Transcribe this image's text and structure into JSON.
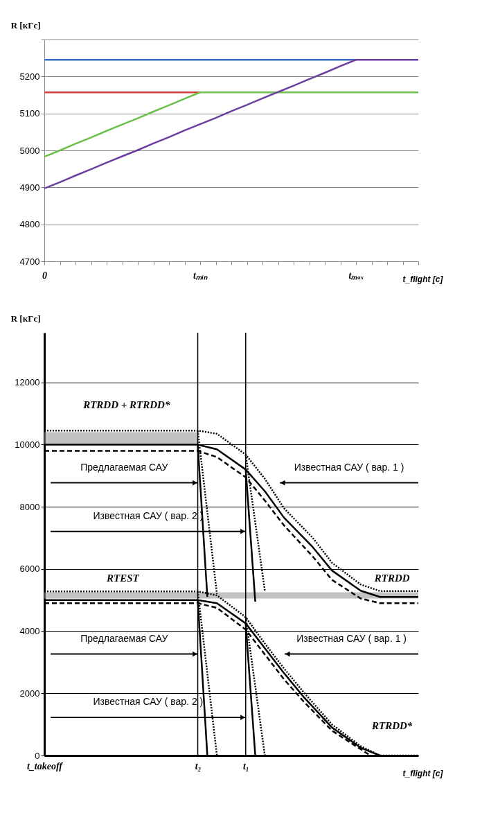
{
  "chart_data": [
    {
      "type": "line",
      "ylabel": "R [кГс]",
      "xlabel": "t_flight [с]",
      "ylim": [
        4700,
        5300
      ],
      "categories": [
        "0",
        null,
        null,
        null,
        null,
        null,
        null,
        null,
        null,
        null,
        "tₘᵢₙ",
        null,
        null,
        null,
        null,
        null,
        null,
        null,
        null,
        null,
        "tₘₐₓ",
        null,
        null,
        null,
        null
      ],
      "yticks": [
        4700,
        4800,
        4900,
        5000,
        5100,
        5200,
        {
          "value": 5300,
          "label": null
        }
      ],
      "grid": "y",
      "series": [
        {
          "color": "#3a6fc4",
          "values": [
            5245,
            5245,
            5245,
            5245,
            5245,
            5245,
            5245,
            5245,
            5245,
            5245,
            5245,
            5245,
            5245,
            5245,
            5245,
            5245,
            5245,
            5245,
            5245,
            5245,
            5245,
            null,
            null,
            null,
            null
          ]
        },
        {
          "color": "#d03a3a",
          "values": [
            5157,
            5157,
            5157,
            5157,
            5157,
            5157,
            5157,
            5157,
            5157,
            5157,
            5157,
            null,
            null,
            null,
            null,
            null,
            null,
            null,
            null,
            null,
            null,
            null,
            null,
            null,
            null
          ]
        },
        {
          "color": "#6cc04a",
          "values": [
            4983,
            5000,
            5018,
            5035,
            5053,
            5070,
            5087,
            5105,
            5122,
            5140,
            5157,
            5157,
            5157,
            5157,
            5157,
            5157,
            5157,
            5157,
            5157,
            5157,
            5157,
            5157,
            5157,
            5157,
            5157
          ]
        },
        {
          "color": "#6a3fa0",
          "values": [
            4897,
            4914,
            4932,
            4949,
            4967,
            4984,
            5001,
            5019,
            5036,
            5054,
            5071,
            5088,
            5106,
            5123,
            5141,
            5158,
            5175,
            5193,
            5210,
            5228,
            5245,
            5245,
            5245,
            5245,
            5245
          ]
        }
      ]
    },
    {
      "type": "line",
      "ylabel": "R [кГс]",
      "xlabel": "t_flight [с]",
      "ylim": [
        0,
        13600
      ],
      "categories": [
        "t_takeoff",
        null,
        null,
        null,
        null,
        null,
        null,
        null,
        null,
        null,
        null,
        null,
        null,
        null,
        null,
        null,
        "t₂",
        null,
        null,
        null,
        null,
        "t₁",
        null,
        null,
        null,
        null,
        null,
        null,
        null,
        null,
        null,
        null,
        null,
        null,
        null,
        null,
        null,
        null,
        null,
        null
      ],
      "yticks": [
        0,
        2000,
        4000,
        6000,
        8000,
        10000,
        12000
      ],
      "grid": "y",
      "ref_lines": [
        {
          "axis": "x",
          "value": "t₂"
        },
        {
          "axis": "x",
          "value": "t₁"
        }
      ],
      "bands": [
        {
          "axis": "y",
          "from": 10000,
          "to": 10400,
          "color": "#9a9a9a"
        },
        {
          "axis": "y",
          "from": 5050,
          "to": 5250,
          "color": "#9a9a9a"
        }
      ],
      "annotations": [
        "RTRDD + RTRDD*",
        "RTEST",
        "RTRDD",
        "RTRDD*",
        "Предлагаемая САУ",
        "Известная САУ ( вар. 1 )",
        "Известная САУ ( вар. 2 )",
        "Предлагаемая САУ",
        "Известная САУ ( вар. 1 )",
        "Известная САУ ( вар. 2 )"
      ],
      "series": [
        {
          "color": "#000000",
          "line_style": "dotted",
          "values": [
            10450,
            null,
            null,
            null,
            null,
            null,
            null,
            null,
            null,
            null,
            null,
            null,
            null,
            null,
            null,
            null,
            10450,
            null,
            10350,
            null,
            null,
            9680,
            null,
            8900,
            null,
            7950,
            null,
            null,
            7000,
            null,
            6200,
            null,
            null,
            5500,
            null,
            5290,
            null,
            null,
            null,
            5290
          ]
        },
        {
          "color": "#000000",
          "line_style": "solid",
          "values": [
            10000,
            null,
            null,
            null,
            null,
            null,
            null,
            null,
            null,
            null,
            null,
            null,
            null,
            null,
            null,
            null,
            10000,
            null,
            9850,
            null,
            null,
            9200,
            null,
            8500,
            null,
            7650,
            null,
            null,
            6700,
            null,
            5950,
            null,
            null,
            5300,
            null,
            5100,
            null,
            null,
            null,
            5100
          ]
        },
        {
          "color": "#000000",
          "line_style": "dashed",
          "values": [
            9800,
            null,
            null,
            null,
            null,
            null,
            null,
            null,
            null,
            null,
            null,
            null,
            null,
            null,
            null,
            null,
            9800,
            null,
            9600,
            null,
            null,
            8950,
            null,
            8200,
            null,
            7400,
            null,
            null,
            6400,
            null,
            5650,
            null,
            null,
            5050,
            null,
            4900,
            null,
            null,
            null,
            4900
          ]
        },
        {
          "color": "#000000",
          "line_style": "dotted",
          "values": [
            null,
            null,
            null,
            null,
            null,
            null,
            null,
            null,
            null,
            null,
            null,
            null,
            null,
            null,
            null,
            null,
            10450,
            null,
            5200,
            null,
            null,
            null,
            null,
            null,
            null,
            null,
            null,
            null,
            null,
            null,
            null,
            null,
            null,
            null,
            null,
            null,
            null,
            null,
            null,
            null
          ]
        },
        {
          "color": "#000000",
          "line_style": "solid",
          "values": [
            null,
            null,
            null,
            null,
            null,
            null,
            null,
            null,
            null,
            null,
            null,
            null,
            null,
            null,
            null,
            null,
            10000,
            5100,
            null,
            null,
            null,
            null,
            null,
            null,
            null,
            null,
            null,
            null,
            null,
            null,
            null,
            null,
            null,
            null,
            null,
            null,
            null,
            null,
            null,
            null
          ]
        },
        {
          "color": "#000000",
          "line_style": "dotted",
          "values": [
            null,
            null,
            null,
            null,
            null,
            null,
            null,
            null,
            null,
            null,
            null,
            null,
            null,
            null,
            null,
            null,
            null,
            null,
            null,
            null,
            null,
            9680,
            null,
            5300,
            null,
            null,
            null,
            null,
            null,
            null,
            null,
            null,
            null,
            null,
            null,
            null,
            null,
            null,
            null,
            null
          ]
        },
        {
          "color": "#000000",
          "line_style": "solid",
          "values": [
            null,
            null,
            null,
            null,
            null,
            null,
            null,
            null,
            null,
            null,
            null,
            null,
            null,
            null,
            null,
            null,
            null,
            null,
            null,
            null,
            null,
            9200,
            4950,
            null,
            null,
            null,
            null,
            null,
            null,
            null,
            null,
            null,
            null,
            null,
            null,
            null,
            null,
            null,
            null,
            null
          ]
        },
        {
          "color": "#000000",
          "line_style": "dotted",
          "values": [
            5280,
            null,
            null,
            null,
            null,
            null,
            null,
            null,
            null,
            null,
            null,
            null,
            null,
            null,
            null,
            null,
            5280,
            null,
            5150,
            null,
            null,
            4450,
            null,
            3600,
            null,
            2800,
            null,
            2050,
            null,
            null,
            1000,
            null,
            null,
            300,
            null,
            0,
            null,
            null,
            null,
            0
          ]
        },
        {
          "color": "#000000",
          "line_style": "solid",
          "values": [
            5000,
            null,
            null,
            null,
            null,
            null,
            null,
            null,
            null,
            null,
            null,
            null,
            null,
            null,
            null,
            null,
            5000,
            null,
            4900,
            null,
            null,
            4250,
            null,
            3450,
            null,
            2650,
            null,
            1900,
            null,
            null,
            900,
            null,
            null,
            250,
            null,
            0,
            null,
            null,
            null,
            null
          ]
        },
        {
          "color": "#000000",
          "line_style": "dashed",
          "values": [
            4900,
            null,
            null,
            null,
            null,
            null,
            null,
            null,
            null,
            null,
            null,
            null,
            null,
            null,
            null,
            null,
            4900,
            null,
            4750,
            null,
            null,
            4050,
            null,
            3250,
            null,
            2450,
            null,
            1750,
            null,
            null,
            800,
            null,
            null,
            200,
            0,
            null,
            null,
            null,
            null,
            null
          ]
        },
        {
          "color": "#000000",
          "line_style": "dotted",
          "values": [
            null,
            null,
            null,
            null,
            null,
            null,
            null,
            null,
            null,
            null,
            null,
            null,
            null,
            null,
            null,
            null,
            5280,
            null,
            0,
            null,
            null,
            null,
            null,
            null,
            null,
            null,
            null,
            null,
            null,
            null,
            null,
            null,
            null,
            null,
            null,
            null,
            null,
            null,
            null,
            null
          ]
        },
        {
          "color": "#000000",
          "line_style": "solid",
          "values": [
            null,
            null,
            null,
            null,
            null,
            null,
            null,
            null,
            null,
            null,
            null,
            null,
            null,
            null,
            null,
            null,
            5000,
            0,
            null,
            null,
            null,
            null,
            null,
            null,
            null,
            null,
            null,
            null,
            null,
            null,
            null,
            null,
            null,
            null,
            null,
            null,
            null,
            null,
            null,
            null
          ]
        },
        {
          "color": "#000000",
          "line_style": "dotted",
          "values": [
            null,
            null,
            null,
            null,
            null,
            null,
            null,
            null,
            null,
            null,
            null,
            null,
            null,
            null,
            null,
            null,
            null,
            null,
            null,
            null,
            null,
            4450,
            null,
            0,
            null,
            null,
            null,
            null,
            null,
            null,
            null,
            null,
            null,
            null,
            null,
            null,
            null,
            null,
            null,
            null
          ]
        },
        {
          "color": "#000000",
          "line_style": "solid",
          "values": [
            null,
            null,
            null,
            null,
            null,
            null,
            null,
            null,
            null,
            null,
            null,
            null,
            null,
            null,
            null,
            null,
            null,
            null,
            null,
            null,
            null,
            4250,
            0,
            null,
            null,
            null,
            null,
            null,
            null,
            null,
            null,
            null,
            null,
            null,
            null,
            null,
            null,
            null,
            null,
            null
          ]
        }
      ]
    }
  ]
}
